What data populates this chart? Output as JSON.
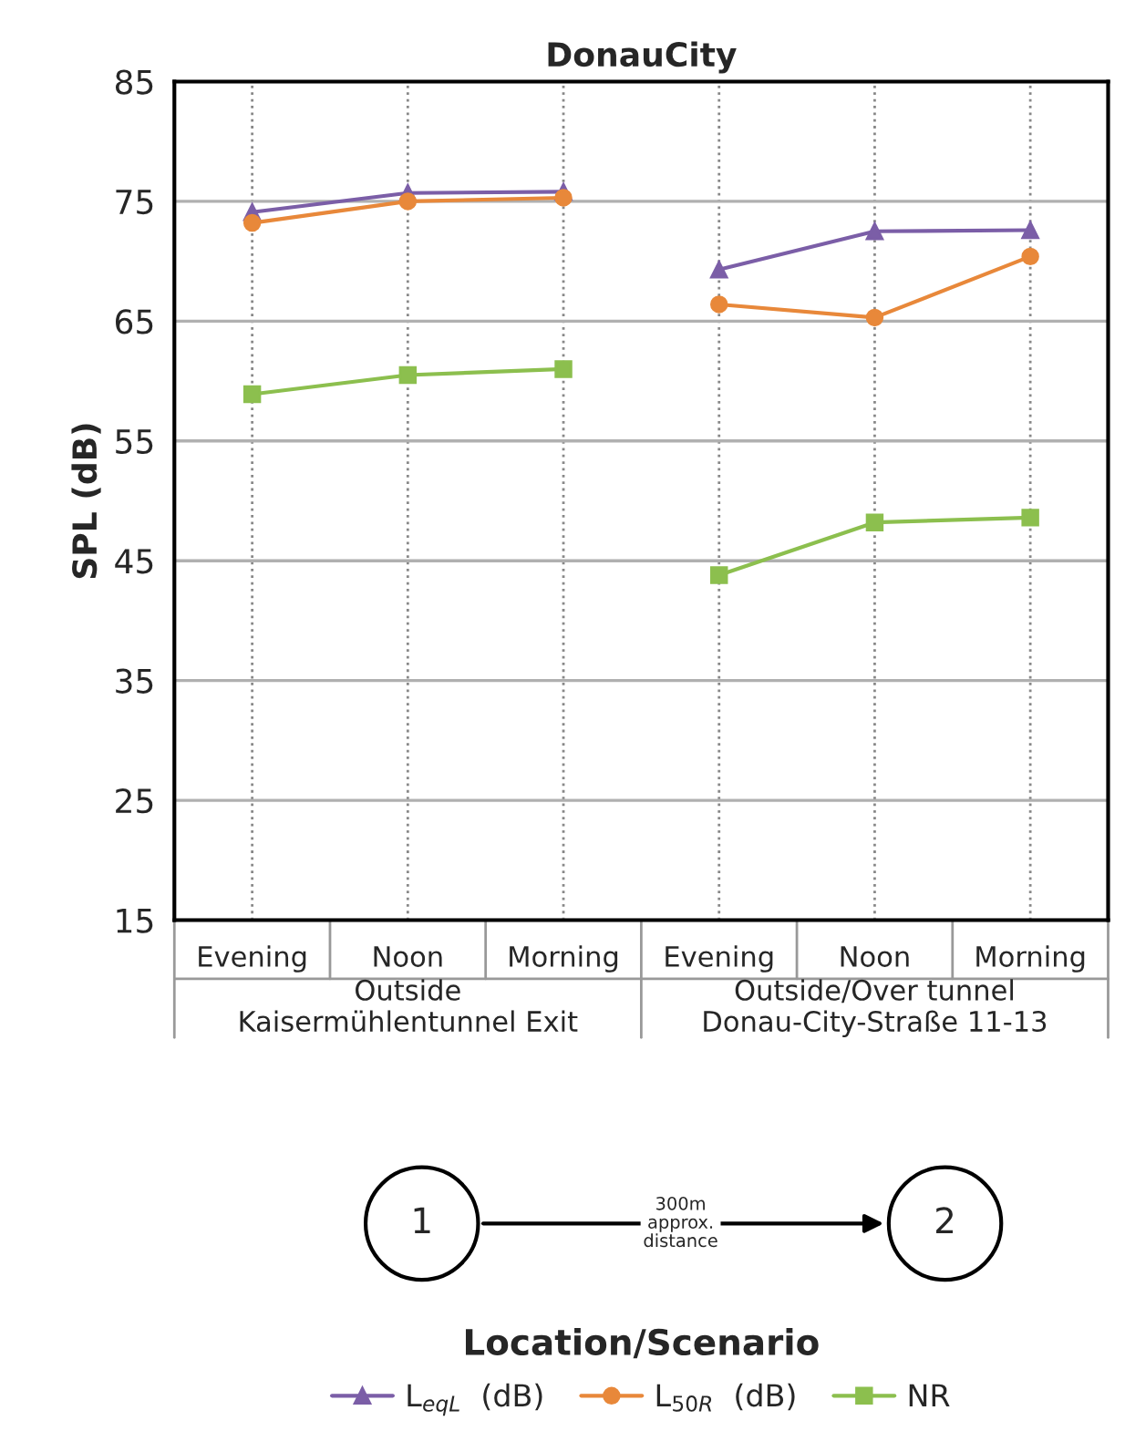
{
  "chart_data": {
    "type": "line",
    "title": "DonauCity",
    "ylabel": "SPL (dB)",
    "categories": [
      "Evening",
      "Noon",
      "Morning",
      "Evening",
      "Noon",
      "Morning"
    ],
    "series": [
      {
        "name": "L$_{eqL}$  (dB)",
        "color": "#7b5ea7",
        "marker": "triangle",
        "values": [
          74.1,
          75.7,
          75.8,
          null,
          null,
          null
        ]
      },
      {
        "name": "L$_{50R}$  (dB)",
        "color": "#e8883a",
        "marker": "circle",
        "values": [
          73.2,
          75.0,
          75.3,
          null,
          null,
          null
        ]
      },
      {
        "name": "NR",
        "color": "#8cbf4e",
        "marker": "square",
        "values": [
          58.9,
          60.5,
          61.0,
          null,
          null,
          null
        ]
      },
      {
        "color": "#7b5ea7",
        "marker": "triangle",
        "values": [
          null,
          null,
          null,
          69.3,
          72.5,
          72.6
        ]
      },
      {
        "color": "#e8883a",
        "marker": "circle",
        "values": [
          null,
          null,
          null,
          66.4,
          65.3,
          70.4
        ]
      },
      {
        "color": "#8cbf4e",
        "marker": "square",
        "values": [
          null,
          null,
          null,
          43.8,
          48.2,
          48.6
        ]
      }
    ],
    "ylim": [
      15,
      85
    ],
    "yticks": [
      15,
      25,
      35,
      45,
      55,
      65,
      75,
      85
    ],
    "grid": true,
    "legend": "bottom",
    "annotations": [
      "Outside\nKaisermühlentunnel Exit",
      "Outside/Over tunnel\nDonau-City-Straße 11-13",
      "1",
      "2",
      "300m\napprox.\ndistance",
      "Location/Scenario"
    ]
  }
}
